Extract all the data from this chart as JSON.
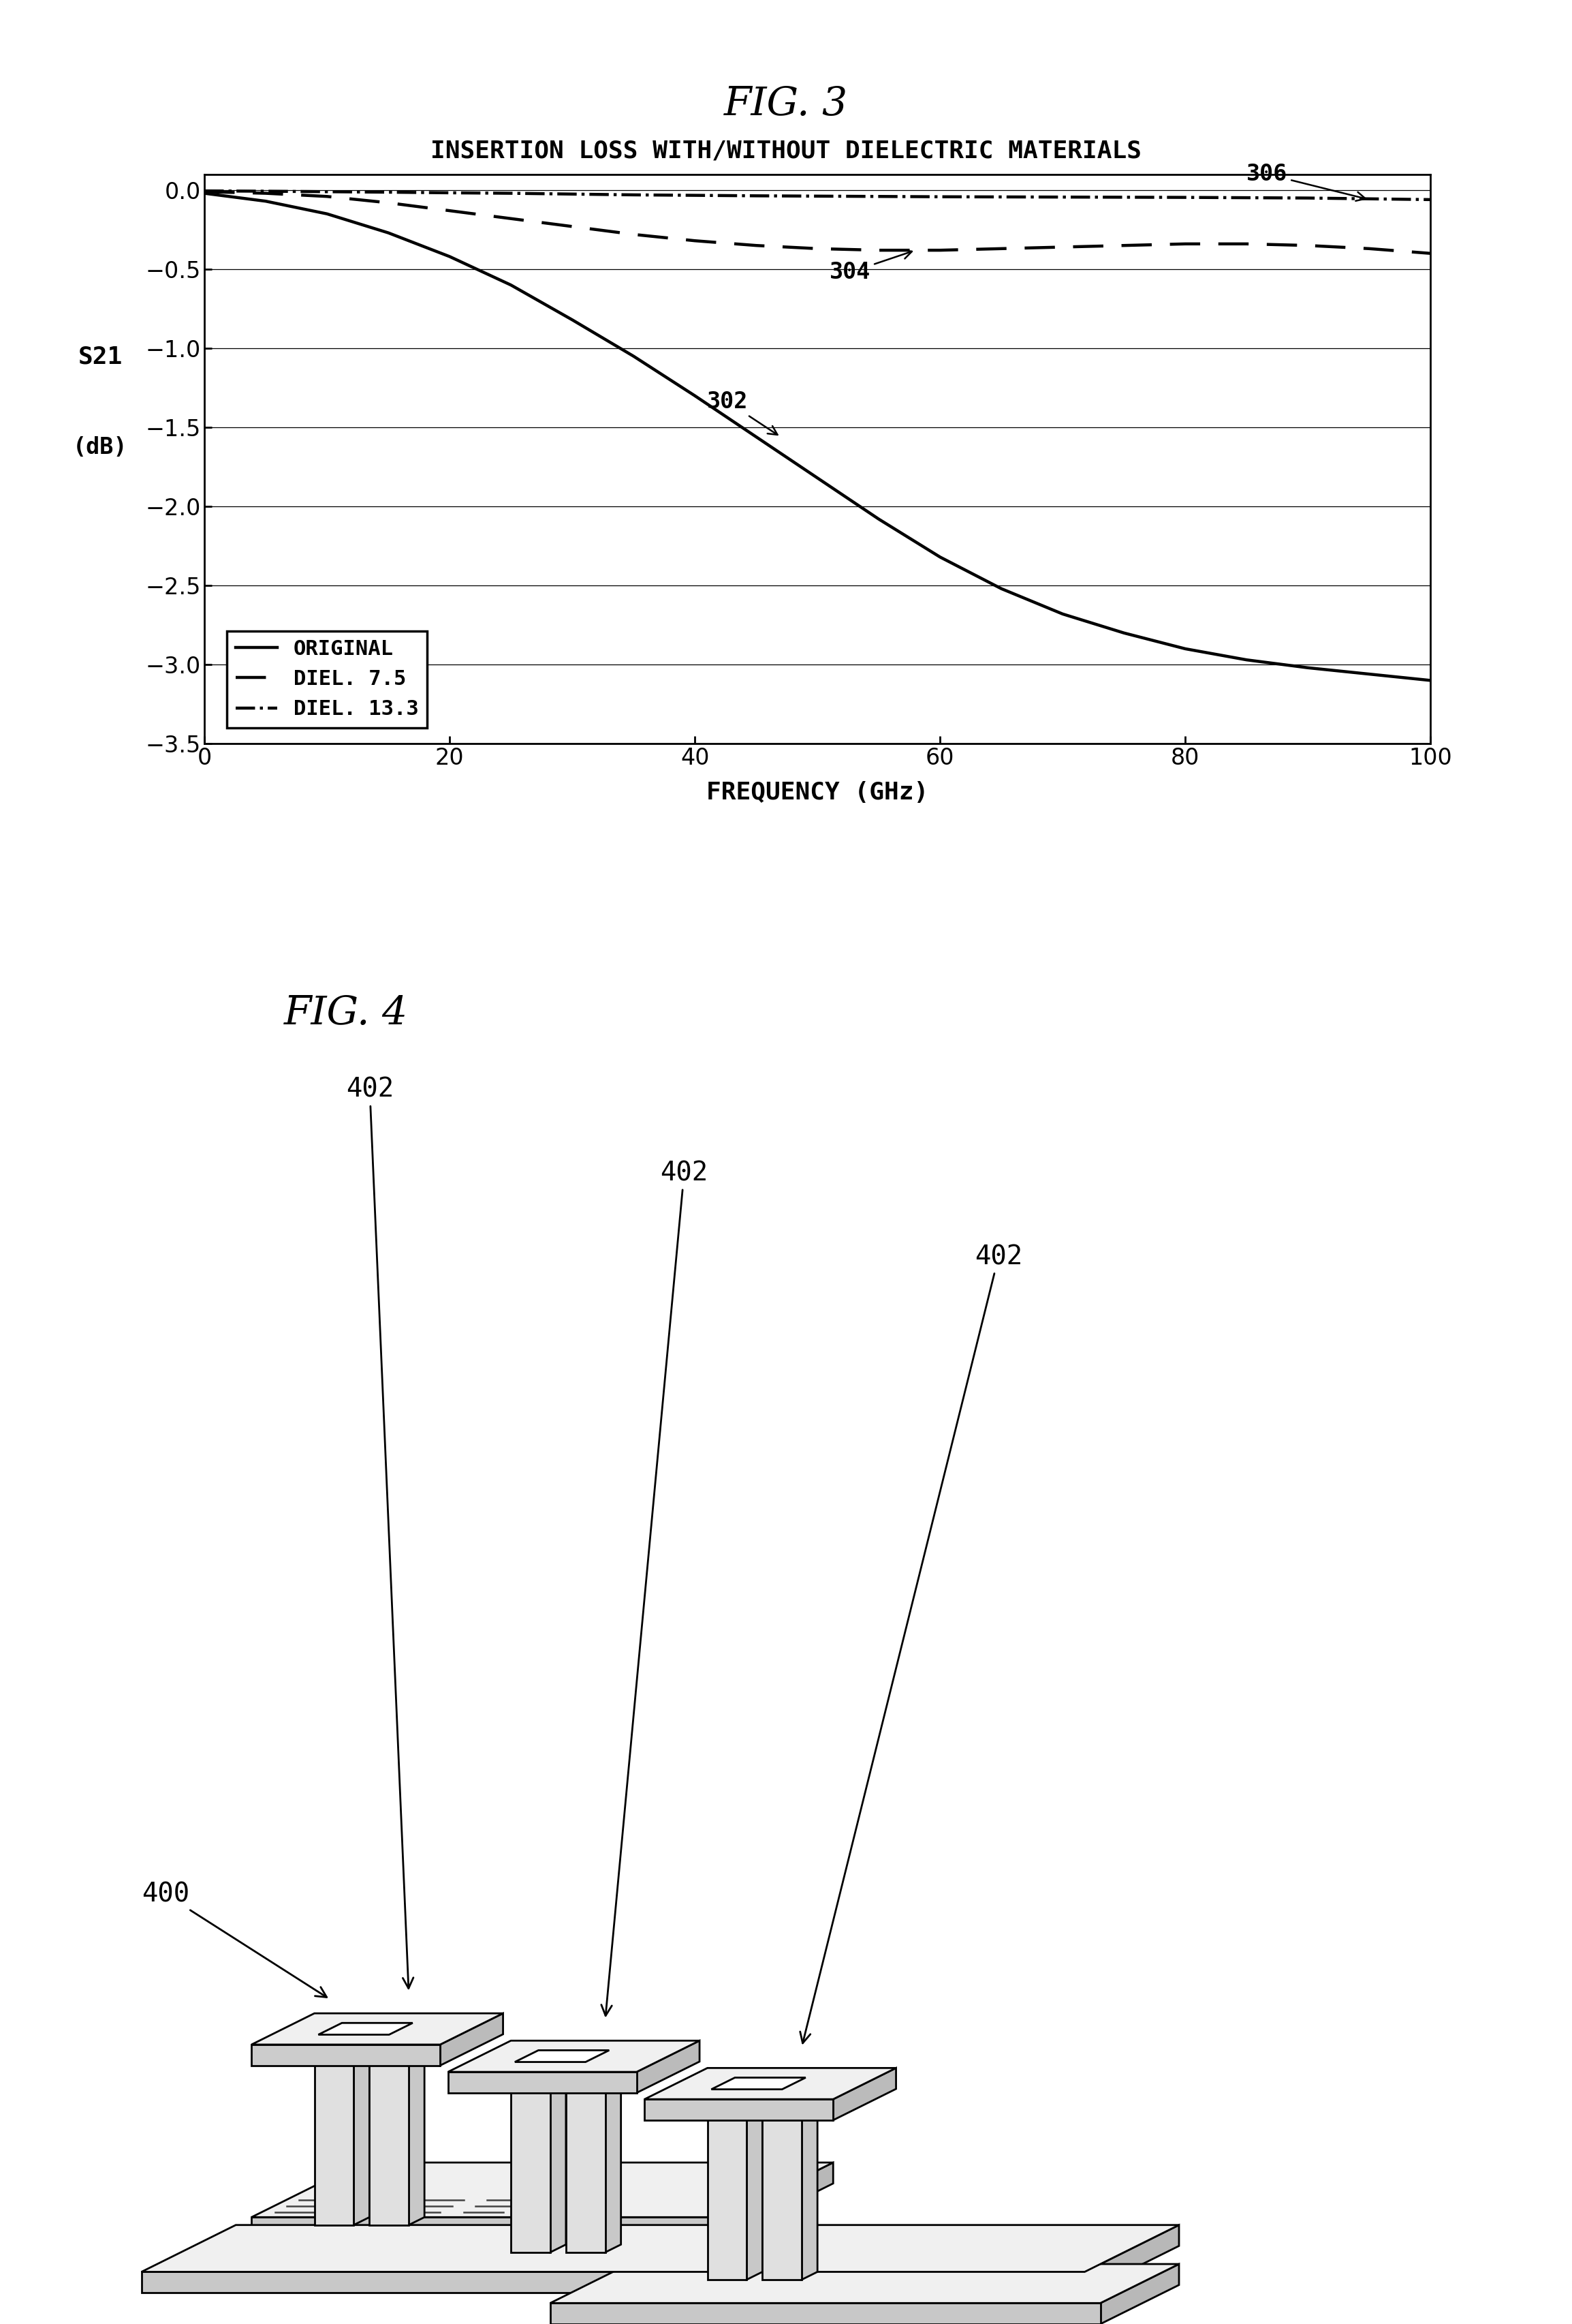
{
  "fig3_title": "FIG. 3",
  "fig3_subtitle": "INSERTION LOSS WITH/WITHOUT DIELECTRIC MATERIALS",
  "fig4_title": "FIG. 4",
  "xlabel": "FREQUENCY (GHz)",
  "ylabel_line1": "S21",
  "ylabel_line2": "(dB)",
  "xlim": [
    0,
    100
  ],
  "ylim": [
    -3.5,
    0.1
  ],
  "yticks": [
    0,
    -0.5,
    -1,
    -1.5,
    -2,
    -2.5,
    -3,
    -3.5
  ],
  "xticks": [
    0,
    20,
    40,
    60,
    80,
    100
  ],
  "legend_labels": [
    "ORIGINAL",
    "DIEL. 7.5",
    "DIEL. 13.3"
  ],
  "label_302": "302",
  "label_304": "304",
  "label_306": "306",
  "label_400": "400",
  "label_402": "402",
  "bg_color": "#ffffff",
  "curve302_x": [
    0,
    5,
    10,
    15,
    20,
    25,
    30,
    35,
    40,
    45,
    50,
    55,
    60,
    65,
    70,
    75,
    80,
    85,
    90,
    95,
    100
  ],
  "curve302_y": [
    -0.02,
    -0.07,
    -0.15,
    -0.27,
    -0.42,
    -0.6,
    -0.82,
    -1.05,
    -1.3,
    -1.56,
    -1.82,
    -2.08,
    -2.32,
    -2.52,
    -2.68,
    -2.8,
    -2.9,
    -2.97,
    -3.02,
    -3.06,
    -3.1
  ],
  "curve304_x": [
    0,
    5,
    10,
    15,
    20,
    25,
    30,
    35,
    40,
    45,
    50,
    55,
    60,
    65,
    70,
    75,
    80,
    85,
    90,
    95,
    100
  ],
  "curve304_y": [
    -0.01,
    -0.02,
    -0.04,
    -0.08,
    -0.13,
    -0.18,
    -0.23,
    -0.28,
    -0.32,
    -0.35,
    -0.37,
    -0.38,
    -0.38,
    -0.37,
    -0.36,
    -0.35,
    -0.34,
    -0.34,
    -0.35,
    -0.37,
    -0.4
  ],
  "curve306_x": [
    0,
    5,
    10,
    15,
    20,
    25,
    30,
    35,
    40,
    45,
    50,
    55,
    60,
    65,
    70,
    75,
    80,
    85,
    90,
    95,
    100
  ],
  "curve306_y": [
    -0.005,
    -0.007,
    -0.01,
    -0.013,
    -0.017,
    -0.02,
    -0.025,
    -0.03,
    -0.033,
    -0.036,
    -0.038,
    -0.04,
    -0.042,
    -0.043,
    -0.044,
    -0.045,
    -0.046,
    -0.048,
    -0.05,
    -0.055,
    -0.06
  ]
}
